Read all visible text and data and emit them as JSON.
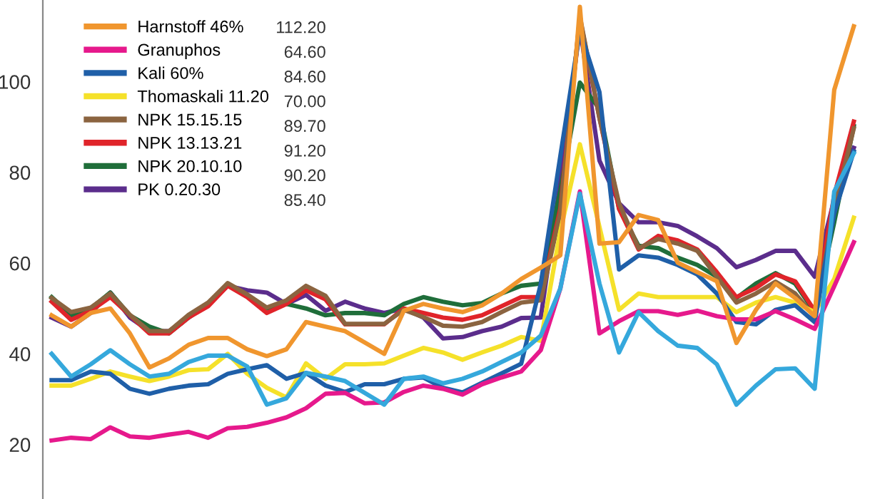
{
  "chart_data": {
    "type": "line",
    "categories": [
      null,
      null,
      null,
      null,
      null,
      null,
      null,
      null,
      null,
      null,
      null,
      null,
      null,
      null,
      null,
      null,
      null,
      null,
      null,
      null,
      null,
      null,
      null,
      null,
      null,
      null,
      null,
      null,
      null,
      null,
      null,
      null,
      null,
      null,
      null,
      null,
      null,
      null,
      null,
      null,
      null,
      null
    ],
    "series": [
      {
        "color": "#35a8dc",
        "values": [
          40,
          35,
          37.7,
          40.8,
          37.7,
          35,
          35.6,
          38.2,
          39.6,
          39.6,
          37.2,
          28.8,
          30.2,
          35.8,
          35,
          34,
          31.4,
          28.8,
          34.5,
          35,
          33.5,
          34.5,
          36.1,
          38.2,
          40.3,
          44,
          54.4,
          75.3,
          55.5,
          40.3,
          49.2,
          45,
          41.8,
          41.3,
          37.7,
          28.8,
          33,
          36.6,
          36.8,
          32.3,
          75.8,
          84.2
        ]
      },
      {
        "name": "Harnstoff 46%",
        "color": "#f0962e",
        "values": [
          48.5,
          46,
          49,
          50,
          44.5,
          37,
          39,
          42,
          43.5,
          43.5,
          41,
          39.5,
          41,
          47,
          46,
          45,
          42.5,
          40,
          49.5,
          51,
          50,
          49.2,
          50.7,
          53.3,
          56.5,
          59,
          61.7,
          116.5,
          64.3,
          64.6,
          70.6,
          69.5,
          60.1,
          58,
          56,
          42.4,
          49.7,
          55.5,
          52.3,
          48.3,
          98.2,
          112.2
        ]
      },
      {
        "name": "Granuphos",
        "color": "#e6198c",
        "values": [
          20.9,
          21.5,
          21.2,
          23.8,
          21.8,
          21.5,
          22.2,
          22.8,
          21.5,
          23.6,
          23.9,
          24.8,
          26,
          28,
          31.2,
          31.4,
          29.1,
          29.3,
          31.6,
          33,
          32.3,
          31,
          33.3,
          34.8,
          36.1,
          40.8,
          54.4,
          75.8,
          44.5,
          47.2,
          49.4,
          49.4,
          48.6,
          49.5,
          48.3,
          47.6,
          47.6,
          49.4,
          47.6,
          45.5,
          54.9,
          64.6
        ]
      },
      {
        "name": "Kali 60%",
        "color": "#1f5fa8",
        "values": [
          34.2,
          34.2,
          36.1,
          35.6,
          32.3,
          31.2,
          32.3,
          33,
          33.3,
          35.6,
          36.6,
          37.5,
          34.5,
          35.8,
          33,
          31.6,
          33.3,
          33.3,
          34.5,
          34.8,
          32.5,
          31.5,
          33.6,
          35.7,
          37.8,
          55.4,
          83.6,
          111.3,
          97.7,
          58.6,
          61.7,
          61.2,
          59.6,
          57.5,
          53.3,
          47,
          46.5,
          49.7,
          50.7,
          47,
          71,
          84.6
        ]
      },
      {
        "name": "Thomaskali 11.20",
        "color": "#f5e12a",
        "values": [
          33,
          33,
          34.5,
          36.1,
          35,
          34,
          35,
          36.4,
          36.6,
          40,
          35.6,
          32.5,
          30.4,
          37.9,
          34.5,
          37.7,
          37.7,
          37.9,
          39.6,
          41.3,
          40.3,
          38.7,
          40.3,
          41.8,
          43.7,
          42.9,
          67,
          86.2,
          68,
          49.7,
          53.3,
          52.5,
          52.5,
          52.5,
          52.5,
          49.2,
          51.3,
          52.5,
          51.3,
          49.2,
          56.5,
          70
        ]
      },
      {
        "name": "NPK 15.15.15",
        "color": "#8b6440",
        "values": [
          52.3,
          49.2,
          50.2,
          53.3,
          48.6,
          45,
          45,
          48.6,
          51.3,
          55.6,
          53.1,
          50.2,
          51.8,
          55,
          52.8,
          46.6,
          46.6,
          46.6,
          49.7,
          48.1,
          46.2,
          46,
          47,
          49.2,
          51.3,
          51.8,
          71,
          114.4,
          92,
          73.2,
          63.3,
          65.3,
          64.3,
          62.7,
          57,
          51.3,
          53.3,
          55.9,
          53.3,
          48.1,
          72,
          89.7
        ]
      },
      {
        "name": "NPK 13.13.21",
        "color": "#e0242a",
        "values": [
          51.5,
          47.5,
          49.5,
          52.5,
          48.5,
          44.5,
          44.5,
          48,
          50.5,
          55,
          52.5,
          49,
          51,
          54,
          52,
          46.5,
          46.5,
          46.5,
          50,
          49,
          48,
          47.5,
          48.5,
          50.5,
          52.5,
          52.5,
          72,
          114,
          92,
          72,
          63,
          66,
          65,
          63,
          58,
          52.5,
          54.5,
          57.5,
          56,
          49.5,
          75,
          91.2
        ]
      },
      {
        "name": "NPK 20.10.10",
        "color": "#1f6e3a",
        "values": [
          52.5,
          48.5,
          50,
          53.5,
          48.5,
          46,
          44.5,
          48,
          51,
          55.5,
          53,
          50,
          51,
          50,
          48.5,
          49,
          49,
          48.5,
          51,
          52.5,
          51.5,
          50.7,
          51.2,
          53.3,
          55,
          55.5,
          76,
          99.8,
          94,
          72,
          63.8,
          63.3,
          61.2,
          59.6,
          57,
          52.3,
          55.5,
          57.8,
          55.5,
          49.2,
          69,
          90.2
        ]
      },
      {
        "name": "PK 0.20.30",
        "color": "#5b2d8c",
        "values": [
          48,
          46,
          49,
          53.5,
          48,
          45,
          45,
          48,
          51,
          55,
          54,
          53.5,
          51,
          53,
          49.5,
          51.5,
          50,
          49,
          50,
          48,
          43.4,
          43.7,
          45,
          46,
          47.9,
          48,
          78,
          112,
          82.6,
          73.2,
          69,
          69,
          68.2,
          65.9,
          63.3,
          59.1,
          60.7,
          62.7,
          62.7,
          57,
          74,
          85.4
        ]
      }
    ],
    "annotations": [
      "112.20",
      "64.60",
      "84.60",
      "70.00",
      "89.70",
      "91.20",
      "90.20",
      "85.40"
    ],
    "ylim": [
      8,
      118
    ],
    "yticks": [
      20,
      40,
      60,
      80,
      100
    ],
    "tick_labels": "y",
    "grid": false,
    "legend": "top left",
    "marker": "none",
    "line_style": "solid"
  }
}
